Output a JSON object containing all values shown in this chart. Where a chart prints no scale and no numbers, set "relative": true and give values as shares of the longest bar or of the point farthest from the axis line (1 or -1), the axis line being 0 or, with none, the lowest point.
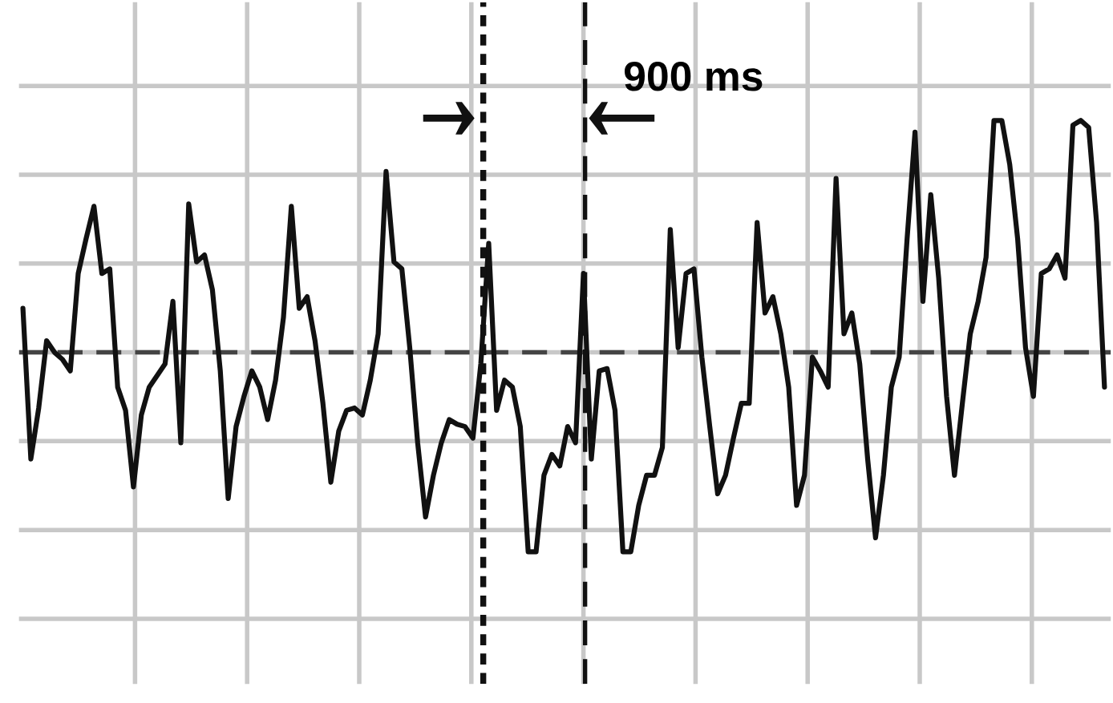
{
  "chart_data": {
    "type": "line",
    "relative": true,
    "grid": true,
    "categories": [
      null,
      null,
      null,
      null,
      null,
      null,
      null,
      null,
      null,
      null,
      null,
      null,
      null,
      null,
      null,
      null,
      null,
      null,
      null,
      null,
      null,
      null,
      null,
      null,
      null,
      null,
      null,
      null,
      null,
      null,
      null,
      null,
      null,
      null,
      null,
      null,
      null,
      null,
      null,
      null,
      null,
      null,
      null,
      null,
      null,
      null,
      null,
      null,
      null,
      null,
      null,
      null,
      null,
      null,
      null,
      null,
      null,
      null,
      null,
      null,
      null,
      null,
      null,
      null,
      null,
      null,
      null,
      null,
      null,
      null,
      null,
      null,
      null,
      null,
      null,
      null,
      null,
      null,
      null,
      null,
      null,
      null,
      null,
      null,
      null,
      null,
      null,
      null,
      null,
      null,
      null,
      null,
      null,
      null,
      null,
      null,
      null,
      null,
      null,
      null,
      null,
      null,
      null,
      null,
      null,
      null,
      null,
      null,
      null,
      null,
      null,
      null,
      null,
      null,
      null,
      null,
      null,
      null,
      null,
      null,
      null,
      null,
      null,
      null,
      null,
      null,
      null,
      null,
      null,
      null,
      null,
      null,
      null,
      null,
      null,
      null,
      null,
      null
    ],
    "series": [
      {
        "color": "#111111",
        "values": [
          0.19,
          -0.46,
          -0.24,
          0.05,
          0,
          -0.03,
          -0.08,
          0.34,
          0.49,
          0.63,
          0.34,
          0.36,
          -0.15,
          -0.25,
          -0.58,
          -0.27,
          -0.15,
          -0.1,
          -0.05,
          0.22,
          -0.39,
          0.64,
          0.39,
          0.42,
          0.27,
          -0.08,
          -0.63,
          -0.32,
          -0.19,
          -0.08,
          -0.15,
          -0.29,
          -0.12,
          0.15,
          0.63,
          0.19,
          0.24,
          0.05,
          -0.22,
          -0.56,
          -0.34,
          -0.25,
          -0.24,
          -0.27,
          -0.12,
          0.08,
          0.78,
          0.39,
          0.36,
          0.02,
          -0.39,
          -0.71,
          -0.53,
          -0.39,
          -0.29,
          -0.31,
          -0.32,
          -0.37,
          -0.05,
          0.47,
          -0.25,
          -0.12,
          -0.15,
          -0.32,
          -0.86,
          -0.86,
          -0.53,
          -0.44,
          -0.49,
          -0.32,
          -0.39,
          0.34,
          -0.46,
          -0.08,
          -0.07,
          -0.25,
          -0.86,
          -0.86,
          -0.66,
          -0.53,
          -0.53,
          -0.41,
          0.53,
          0.02,
          0.34,
          0.36,
          -0.02,
          -0.32,
          -0.61,
          -0.53,
          -0.37,
          -0.22,
          -0.22,
          0.56,
          0.17,
          0.24,
          0.08,
          -0.15,
          -0.66,
          -0.53,
          -0.02,
          -0.08,
          -0.15,
          0.75,
          0.08,
          0.17,
          -0.05,
          -0.46,
          -0.8,
          -0.53,
          -0.15,
          -0.02,
          0.49,
          0.95,
          0.22,
          0.68,
          0.32,
          -0.19,
          -0.53,
          -0.22,
          0.08,
          0.22,
          0.41,
          1.0,
          1.0,
          0.81,
          0.49,
          0.02,
          -0.19,
          0.34,
          0.36,
          0.42,
          0.32,
          0.98,
          1.0,
          0.97,
          0.56,
          -0.15
        ]
      }
    ],
    "ref_lines": [
      {
        "axis": "y",
        "value": 0,
        "color": "#444444",
        "line_style": "dashed"
      }
    ],
    "annotations": [
      "900 ms"
    ]
  }
}
